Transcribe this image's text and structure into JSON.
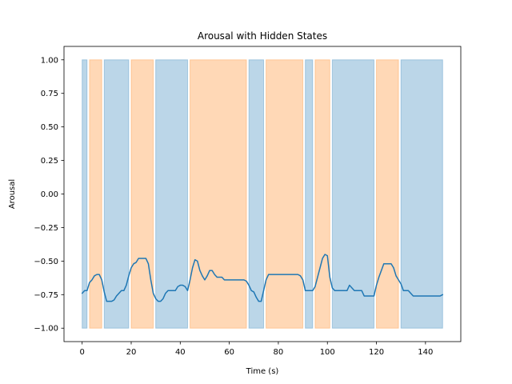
{
  "chart_data": {
    "type": "line",
    "title": "Arousal with Hidden States",
    "xlabel": "Time (s)",
    "ylabel": "Arousal",
    "xlim": [
      -7.4,
      154.4
    ],
    "ylim": [
      -1.1,
      1.1
    ],
    "xticks": [
      0,
      20,
      40,
      60,
      80,
      100,
      120,
      140
    ],
    "xtick_labels": [
      "0",
      "20",
      "40",
      "60",
      "80",
      "100",
      "120",
      "140"
    ],
    "yticks": [
      1.0,
      0.75,
      0.5,
      0.25,
      0.0,
      -0.25,
      -0.5,
      -0.75,
      -1.0
    ],
    "ytick_labels": [
      "1.00",
      "0.75",
      "0.50",
      "0.25",
      "0.00",
      "−0.25",
      "−0.50",
      "−0.75",
      "−1.00"
    ],
    "grid": false,
    "series": [
      {
        "color": "#1f77b4",
        "x": [
          0,
          1,
          2,
          3,
          4,
          5,
          6,
          7,
          8,
          9,
          10,
          11,
          12,
          13,
          14,
          15,
          16,
          17,
          18,
          19,
          20,
          21,
          22,
          23,
          24,
          25,
          26,
          27,
          28,
          29,
          30,
          31,
          32,
          33,
          34,
          35,
          36,
          37,
          38,
          39,
          40,
          41,
          42,
          43,
          44,
          45,
          46,
          47,
          48,
          49,
          50,
          51,
          52,
          53,
          54,
          55,
          56,
          57,
          58,
          59,
          60,
          62,
          64,
          66,
          67,
          68,
          69,
          70,
          71,
          72,
          73,
          74,
          75,
          76,
          78,
          80,
          82,
          84,
          86,
          88,
          89,
          90,
          91,
          92,
          93,
          94,
          95,
          96,
          97,
          98,
          99,
          100,
          101,
          102,
          103,
          104,
          105,
          106,
          107,
          108,
          109,
          110,
          111,
          112,
          113,
          114,
          115,
          116,
          117,
          118,
          119,
          120,
          121,
          122,
          123,
          124,
          125,
          126,
          127,
          128,
          129,
          130,
          131,
          132,
          133,
          134,
          135,
          136,
          138,
          140,
          142,
          144,
          146,
          147
        ],
        "y": [
          -0.74,
          -0.72,
          -0.72,
          -0.66,
          -0.64,
          -0.61,
          -0.6,
          -0.6,
          -0.64,
          -0.73,
          -0.8,
          -0.8,
          -0.8,
          -0.79,
          -0.76,
          -0.74,
          -0.72,
          -0.72,
          -0.68,
          -0.61,
          -0.55,
          -0.52,
          -0.51,
          -0.48,
          -0.48,
          -0.48,
          -0.48,
          -0.52,
          -0.64,
          -0.74,
          -0.78,
          -0.8,
          -0.8,
          -0.78,
          -0.74,
          -0.72,
          -0.72,
          -0.72,
          -0.72,
          -0.69,
          -0.68,
          -0.68,
          -0.69,
          -0.72,
          -0.64,
          -0.55,
          -0.49,
          -0.5,
          -0.57,
          -0.61,
          -0.64,
          -0.61,
          -0.57,
          -0.57,
          -0.6,
          -0.62,
          -0.62,
          -0.62,
          -0.64,
          -0.64,
          -0.64,
          -0.64,
          -0.64,
          -0.64,
          -0.65,
          -0.68,
          -0.72,
          -0.73,
          -0.77,
          -0.8,
          -0.8,
          -0.72,
          -0.64,
          -0.6,
          -0.6,
          -0.6,
          -0.6,
          -0.6,
          -0.6,
          -0.6,
          -0.61,
          -0.64,
          -0.72,
          -0.72,
          -0.72,
          -0.72,
          -0.69,
          -0.62,
          -0.55,
          -0.48,
          -0.45,
          -0.46,
          -0.62,
          -0.7,
          -0.72,
          -0.72,
          -0.72,
          -0.72,
          -0.72,
          -0.72,
          -0.68,
          -0.7,
          -0.72,
          -0.72,
          -0.72,
          -0.72,
          -0.76,
          -0.76,
          -0.76,
          -0.76,
          -0.76,
          -0.68,
          -0.62,
          -0.57,
          -0.52,
          -0.52,
          -0.52,
          -0.52,
          -0.55,
          -0.61,
          -0.64,
          -0.67,
          -0.72,
          -0.72,
          -0.72,
          -0.74,
          -0.76,
          -0.76,
          -0.76,
          -0.76,
          -0.76,
          -0.76,
          -0.76,
          -0.75
        ]
      }
    ],
    "state_regions": [
      {
        "state": 0,
        "color": "#1f77b4",
        "x0": 0,
        "x1": 2
      },
      {
        "state": 1,
        "color": "#ff7f0e",
        "x0": 3,
        "x1": 8
      },
      {
        "state": 0,
        "color": "#1f77b4",
        "x0": 9,
        "x1": 19
      },
      {
        "state": 1,
        "color": "#ff7f0e",
        "x0": 20,
        "x1": 29
      },
      {
        "state": 0,
        "color": "#1f77b4",
        "x0": 30,
        "x1": 43
      },
      {
        "state": 1,
        "color": "#ff7f0e",
        "x0": 44,
        "x1": 67
      },
      {
        "state": 0,
        "color": "#1f77b4",
        "x0": 68,
        "x1": 74
      },
      {
        "state": 1,
        "color": "#ff7f0e",
        "x0": 75,
        "x1": 90
      },
      {
        "state": 0,
        "color": "#1f77b4",
        "x0": 91,
        "x1": 94
      },
      {
        "state": 1,
        "color": "#ff7f0e",
        "x0": 95,
        "x1": 101
      },
      {
        "state": 0,
        "color": "#1f77b4",
        "x0": 102,
        "x1": 119
      },
      {
        "state": 1,
        "color": "#ff7f0e",
        "x0": 120,
        "x1": 129
      },
      {
        "state": 0,
        "color": "#1f77b4",
        "x0": 130,
        "x1": 147
      }
    ],
    "region_ymin": -1.0,
    "region_ymax": 1.0
  }
}
